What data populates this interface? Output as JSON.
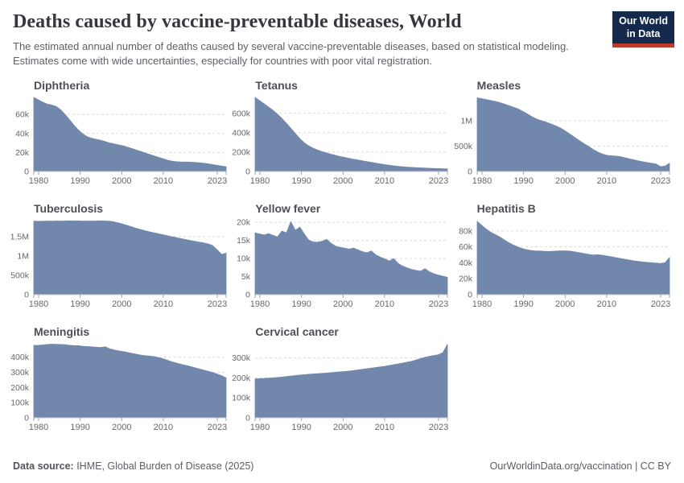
{
  "header": {
    "title": "Deaths caused by vaccine-preventable diseases, World",
    "subtitle": "The estimated annual number of deaths caused by several vaccine-preventable diseases, based on statistical modeling. Estimates come with wide uncertainties, especially for countries with poor vital registration.",
    "logo": {
      "line1": "Our World",
      "line2": "in Data",
      "bg_color": "#14294b",
      "stripe_color": "#bf3a2e"
    }
  },
  "footer": {
    "datasource_label": "Data source:",
    "datasource_value": " IHME, Global Burden of Disease (2025)",
    "credit": "OurWorldinData.org/vaccination | CC BY"
  },
  "colors": {
    "area": "#7188ac",
    "gridline": "#d9dadd",
    "axis_line": "#c6c7ca",
    "tick": "#a3a4a8",
    "label": "#66676c"
  },
  "chart_data": [
    {
      "type": "area",
      "title": "Diphtheria",
      "x_start": 1980,
      "x_end": 2023,
      "x_ticks": [
        1980,
        1990,
        2000,
        2010,
        2023
      ],
      "y_max": 78000,
      "y_ticks": [
        {
          "v": 0,
          "label": "0"
        },
        {
          "v": 20000,
          "label": "20k"
        },
        {
          "v": 40000,
          "label": "40k"
        },
        {
          "v": 60000,
          "label": "60k"
        }
      ],
      "values": [
        78000,
        75500,
        73000,
        71000,
        70000,
        68500,
        65000,
        60000,
        54500,
        48500,
        43500,
        39500,
        36500,
        35000,
        33800,
        32800,
        31500,
        30000,
        29000,
        28000,
        27000,
        25500,
        24000,
        22500,
        21000,
        19300,
        17800,
        16200,
        14700,
        13200,
        11800,
        10800,
        10300,
        10000,
        9900,
        9800,
        9500,
        9200,
        8700,
        8000,
        7200,
        6400,
        5700,
        5100
      ]
    },
    {
      "type": "area",
      "title": "Tetanus",
      "x_start": 1980,
      "x_end": 2023,
      "x_ticks": [
        1980,
        1990,
        2000,
        2010,
        2023
      ],
      "y_max": 765000,
      "y_ticks": [
        {
          "v": 0,
          "label": "0"
        },
        {
          "v": 200000,
          "label": "200k"
        },
        {
          "v": 400000,
          "label": "400k"
        },
        {
          "v": 600000,
          "label": "600k"
        }
      ],
      "values": [
        765000,
        732000,
        700000,
        666000,
        631000,
        592000,
        548000,
        498000,
        446000,
        392000,
        340000,
        296000,
        264000,
        240000,
        221000,
        205000,
        191000,
        178000,
        166000,
        155000,
        145000,
        136000,
        127000,
        118000,
        110000,
        102000,
        94000,
        86000,
        78000,
        71000,
        64000,
        58000,
        53000,
        48500,
        45000,
        42000,
        39500,
        37000,
        35000,
        33000,
        31000,
        29500,
        28000,
        26500
      ]
    },
    {
      "type": "area",
      "title": "Measles",
      "x_start": 1980,
      "x_end": 2023,
      "x_ticks": [
        1980,
        1990,
        2000,
        2010,
        2023
      ],
      "y_max": 1460000,
      "y_ticks": [
        {
          "v": 0,
          "label": "0"
        },
        {
          "v": 500000,
          "label": "500k"
        },
        {
          "v": 1000000,
          "label": "1M"
        }
      ],
      "values": [
        1450000,
        1435000,
        1418000,
        1400000,
        1382000,
        1360000,
        1332000,
        1302000,
        1270000,
        1238000,
        1195000,
        1145000,
        1092000,
        1045000,
        1010000,
        985000,
        952000,
        920000,
        882000,
        838000,
        780000,
        720000,
        660000,
        600000,
        543000,
        488000,
        430000,
        382000,
        342000,
        320000,
        310000,
        304000,
        293000,
        272000,
        250000,
        230000,
        210000,
        192000,
        176000,
        162000,
        146000,
        96000,
        106000,
        162000
      ]
    },
    {
      "type": "area",
      "title": "Tuberculosis",
      "x_start": 1980,
      "x_end": 2023,
      "x_ticks": [
        1980,
        1990,
        2000,
        2010,
        2023
      ],
      "y_max": 1915000,
      "y_ticks": [
        {
          "v": 0,
          "label": "0"
        },
        {
          "v": 500000,
          "label": "500k"
        },
        {
          "v": 1000000,
          "label": "1M"
        },
        {
          "v": 1500000,
          "label": "1.5M"
        }
      ],
      "values": [
        1900000,
        1897000,
        1900000,
        1903000,
        1900000,
        1904000,
        1901000,
        1905000,
        1908000,
        1905000,
        1908000,
        1902000,
        1905000,
        1901000,
        1904000,
        1908000,
        1905000,
        1900000,
        1882000,
        1853000,
        1822000,
        1785000,
        1748000,
        1712000,
        1680000,
        1650000,
        1622000,
        1596000,
        1570000,
        1545000,
        1520000,
        1495000,
        1470000,
        1446000,
        1422000,
        1400000,
        1378000,
        1357000,
        1336000,
        1310000,
        1268000,
        1160000,
        1040000,
        1075000
      ]
    },
    {
      "type": "area",
      "title": "Yellow fever",
      "x_start": 1980,
      "x_end": 2023,
      "x_ticks": [
        1980,
        1990,
        2000,
        2010,
        2023
      ],
      "y_max": 20500,
      "y_ticks": [
        {
          "v": 0,
          "label": "0"
        },
        {
          "v": 5000,
          "label": "5k"
        },
        {
          "v": 10000,
          "label": "10k"
        },
        {
          "v": 15000,
          "label": "15k"
        },
        {
          "v": 20000,
          "label": "20k"
        }
      ],
      "values": [
        17100,
        16800,
        16500,
        16900,
        16400,
        16000,
        17600,
        17100,
        20200,
        17800,
        18700,
        16800,
        15100,
        14600,
        14500,
        14800,
        15300,
        14200,
        13400,
        13100,
        12900,
        12600,
        12900,
        12400,
        11900,
        11600,
        12100,
        11000,
        10400,
        9900,
        9300,
        10000,
        8600,
        7900,
        7400,
        7000,
        6700,
        6500,
        7200,
        6300,
        5800,
        5400,
        5100,
        4800
      ]
    },
    {
      "type": "area",
      "title": "Hepatitis B",
      "x_start": 1980,
      "x_end": 2023,
      "x_ticks": [
        1980,
        1990,
        2000,
        2010,
        2023
      ],
      "y_max": 93000,
      "y_ticks": [
        {
          "v": 0,
          "label": "0"
        },
        {
          "v": 20000,
          "label": "20k"
        },
        {
          "v": 40000,
          "label": "40k"
        },
        {
          "v": 60000,
          "label": "60k"
        },
        {
          "v": 80000,
          "label": "80k"
        }
      ],
      "values": [
        92000,
        87000,
        82500,
        78500,
        75500,
        72500,
        69000,
        65500,
        62500,
        60000,
        58000,
        56500,
        55500,
        55000,
        54800,
        54500,
        54200,
        54500,
        54800,
        55000,
        55000,
        54500,
        53500,
        52500,
        51500,
        50500,
        49800,
        50200,
        49500,
        48500,
        47500,
        46500,
        45500,
        44500,
        43500,
        42500,
        41800,
        41000,
        40500,
        40000,
        39500,
        39000,
        40000,
        46500
      ]
    },
    {
      "type": "area",
      "title": "Meningitis",
      "x_start": 1980,
      "x_end": 2023,
      "x_ticks": [
        1980,
        1990,
        2000,
        2010,
        2023
      ],
      "y_max": 489000,
      "y_ticks": [
        {
          "v": 0,
          "label": "0"
        },
        {
          "v": 100000,
          "label": "100k"
        },
        {
          "v": 200000,
          "label": "200k"
        },
        {
          "v": 300000,
          "label": "300k"
        },
        {
          "v": 400000,
          "label": "400k"
        }
      ],
      "values": [
        478000,
        479000,
        481000,
        484000,
        486000,
        485000,
        484000,
        483000,
        479000,
        477000,
        476000,
        472000,
        470000,
        468000,
        466000,
        464000,
        469000,
        455000,
        448000,
        442000,
        437000,
        431000,
        425000,
        419000,
        414000,
        410000,
        407000,
        404000,
        397000,
        389000,
        379000,
        369000,
        361000,
        353000,
        346000,
        339000,
        331000,
        323000,
        315000,
        307000,
        299000,
        289000,
        278000,
        264000
      ]
    },
    {
      "type": "area",
      "title": "Cervical cancer",
      "x_start": 1980,
      "x_end": 2023,
      "x_ticks": [
        1980,
        1990,
        2000,
        2010,
        2023
      ],
      "y_max": 371000,
      "y_ticks": [
        {
          "v": 0,
          "label": "0"
        },
        {
          "v": 100000,
          "label": "100k"
        },
        {
          "v": 200000,
          "label": "200k"
        },
        {
          "v": 300000,
          "label": "300k"
        }
      ],
      "values": [
        195000,
        196000,
        197000,
        198500,
        200000,
        202000,
        204000,
        206500,
        209000,
        211500,
        214000,
        216000,
        218000,
        219500,
        221000,
        222500,
        224000,
        226000,
        228000,
        230000,
        232000,
        234500,
        237000,
        240000,
        243000,
        246000,
        249000,
        252000,
        255000,
        258000,
        262000,
        266000,
        270000,
        274000,
        278500,
        283000,
        290000,
        297000,
        303000,
        308000,
        312000,
        316000,
        327000,
        368000
      ]
    }
  ]
}
